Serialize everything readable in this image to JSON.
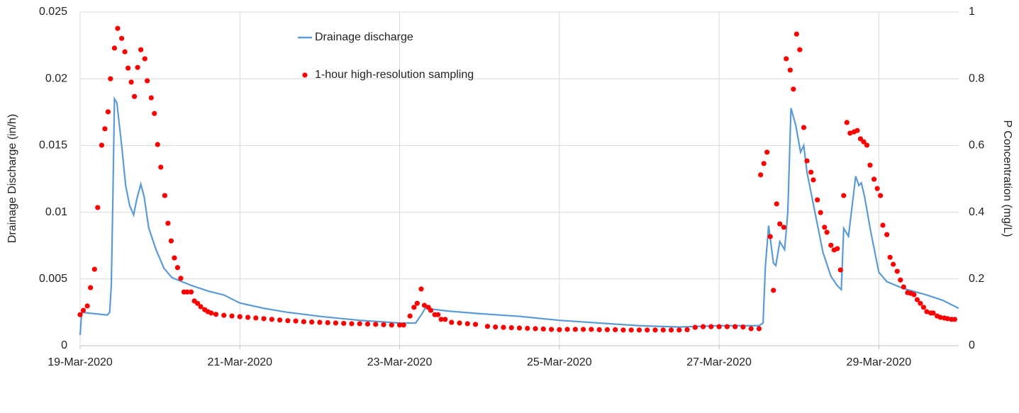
{
  "chart_data": {
    "type": "line-scatter",
    "y_label": "Drainage Discharge (in/h)",
    "y2_label": "P Concentration (mg/L)",
    "xlim": [
      0,
      11
    ],
    "xticks": [
      {
        "value": 0,
        "label": "19-Mar-2020"
      },
      {
        "value": 2,
        "label": "21-Mar-2020"
      },
      {
        "value": 4,
        "label": "23-Mar-2020"
      },
      {
        "value": 6,
        "label": "25-Mar-2020"
      },
      {
        "value": 8,
        "label": "27-Mar-2020"
      },
      {
        "value": 10,
        "label": "29-Mar-2020"
      }
    ],
    "ylim": [
      0,
      0.025
    ],
    "yticks": [
      0,
      0.005,
      0.01,
      0.015,
      0.02,
      0.025
    ],
    "y2lim": [
      0,
      1
    ],
    "y2ticks": [
      0,
      0.2,
      0.4,
      0.6,
      0.8,
      1
    ],
    "grid": true,
    "legend": "top-center",
    "series": [
      {
        "name": "Drainage discharge",
        "kind": "line",
        "color": "#5b9bd5",
        "x": [
          0,
          0.02,
          0.34,
          0.37,
          0.39,
          0.41,
          0.43,
          0.46,
          0.52,
          0.57,
          0.62,
          0.67,
          0.71,
          0.76,
          0.8,
          0.86,
          0.95,
          1.05,
          1.15,
          1.4,
          1.6,
          1.8,
          2.0,
          2.3,
          2.6,
          3.0,
          3.5,
          4.0,
          4.2,
          4.27,
          4.32,
          4.6,
          5.0,
          5.5,
          6.0,
          6.5,
          7.0,
          7.5,
          8.0,
          8.5,
          8.55,
          8.58,
          8.62,
          8.68,
          8.71,
          8.76,
          8.82,
          8.86,
          8.9,
          8.96,
          9.02,
          9.06,
          9.1,
          9.2,
          9.3,
          9.4,
          9.48,
          9.53,
          9.56,
          9.62,
          9.68,
          9.71,
          9.75,
          9.78,
          9.82,
          9.9,
          10.0,
          10.1,
          10.3,
          10.6,
          10.8,
          11.0
        ],
        "values": [
          0.0008,
          0.0025,
          0.0023,
          0.0025,
          0.0045,
          0.011,
          0.0185,
          0.0182,
          0.015,
          0.012,
          0.0105,
          0.0098,
          0.011,
          0.0121,
          0.0112,
          0.0088,
          0.0072,
          0.0058,
          0.0051,
          0.0045,
          0.0041,
          0.0038,
          0.0032,
          0.0028,
          0.0025,
          0.0022,
          0.0019,
          0.0017,
          0.0017,
          0.0023,
          0.0028,
          0.0026,
          0.0024,
          0.0022,
          0.0019,
          0.0017,
          0.0015,
          0.0014,
          0.0015,
          0.0015,
          0.0017,
          0.006,
          0.009,
          0.0062,
          0.006,
          0.0078,
          0.0072,
          0.01,
          0.0178,
          0.0165,
          0.0145,
          0.015,
          0.013,
          0.01,
          0.007,
          0.0052,
          0.0045,
          0.0042,
          0.0088,
          0.0082,
          0.0112,
          0.0127,
          0.012,
          0.0122,
          0.0112,
          0.0085,
          0.0055,
          0.0048,
          0.0043,
          0.0038,
          0.0034,
          0.0028
        ]
      },
      {
        "name": "1-hour high-resolution sampling",
        "kind": "scatter",
        "axis": "y2",
        "color": "#ff0000",
        "x": [
          0,
          0.04,
          0.09,
          0.13,
          0.18,
          0.22,
          0.27,
          0.31,
          0.35,
          0.38,
          0.43,
          0.47,
          0.52,
          0.56,
          0.6,
          0.64,
          0.68,
          0.72,
          0.76,
          0.81,
          0.84,
          0.89,
          0.93,
          0.97,
          1.01,
          1.06,
          1.1,
          1.14,
          1.18,
          1.22,
          1.26,
          1.3,
          1.34,
          1.39,
          1.43,
          1.47,
          1.51,
          1.56,
          1.6,
          1.64,
          1.7,
          1.8,
          1.9,
          2.0,
          2.1,
          2.2,
          2.3,
          2.4,
          2.5,
          2.6,
          2.7,
          2.8,
          2.9,
          3.0,
          3.1,
          3.2,
          3.3,
          3.4,
          3.5,
          3.6,
          3.7,
          3.8,
          3.9,
          4.0,
          4.05,
          4.13,
          4.18,
          4.22,
          4.27,
          4.31,
          4.36,
          4.39,
          4.44,
          4.48,
          4.52,
          4.57,
          4.65,
          4.75,
          4.85,
          4.95,
          5.1,
          5.2,
          5.3,
          5.4,
          5.5,
          5.6,
          5.7,
          5.8,
          5.9,
          6.0,
          6.1,
          6.2,
          6.3,
          6.4,
          6.5,
          6.6,
          6.7,
          6.8,
          6.9,
          7.0,
          7.1,
          7.2,
          7.3,
          7.4,
          7.5,
          7.6,
          7.7,
          7.8,
          7.9,
          8.0,
          8.1,
          8.2,
          8.3,
          8.4,
          8.5,
          8.52,
          8.56,
          8.6,
          8.64,
          8.68,
          8.72,
          8.76,
          8.81,
          8.84,
          8.89,
          8.93,
          8.97,
          9.01,
          9.06,
          9.1,
          9.15,
          9.18,
          9.23,
          9.27,
          9.32,
          9.35,
          9.4,
          9.44,
          9.48,
          9.52,
          9.56,
          9.6,
          9.64,
          9.69,
          9.73,
          9.77,
          9.81,
          9.85,
          9.89,
          9.94,
          9.98,
          10.02,
          10.05,
          10.1,
          10.14,
          10.18,
          10.23,
          10.27,
          10.31,
          10.36,
          10.4,
          10.44,
          10.48,
          10.52,
          10.56,
          10.6,
          10.65,
          10.68,
          10.73,
          10.77,
          10.82,
          10.86,
          10.91,
          10.95
        ],
        "values": [
          0.093,
          0.106,
          0.119,
          0.174,
          0.229,
          0.414,
          0.601,
          0.65,
          0.701,
          0.8,
          0.892,
          0.951,
          0.921,
          0.881,
          0.832,
          0.79,
          0.747,
          0.834,
          0.887,
          0.86,
          0.794,
          0.743,
          0.696,
          0.603,
          0.535,
          0.45,
          0.367,
          0.314,
          0.263,
          0.234,
          0.202,
          0.161,
          0.161,
          0.161,
          0.134,
          0.127,
          0.117,
          0.108,
          0.102,
          0.098,
          0.094,
          0.091,
          0.089,
          0.087,
          0.085,
          0.083,
          0.081,
          0.079,
          0.077,
          0.075,
          0.074,
          0.072,
          0.071,
          0.07,
          0.069,
          0.068,
          0.067,
          0.066,
          0.066,
          0.065,
          0.064,
          0.063,
          0.062,
          0.062,
          0.062,
          0.089,
          0.115,
          0.127,
          0.17,
          0.121,
          0.115,
          0.106,
          0.093,
          0.093,
          0.079,
          0.079,
          0.07,
          0.068,
          0.066,
          0.064,
          0.058,
          0.056,
          0.055,
          0.054,
          0.053,
          0.052,
          0.051,
          0.05,
          0.049,
          0.048,
          0.049,
          0.049,
          0.049,
          0.049,
          0.048,
          0.048,
          0.048,
          0.047,
          0.047,
          0.047,
          0.047,
          0.047,
          0.047,
          0.047,
          0.047,
          0.048,
          0.055,
          0.057,
          0.057,
          0.057,
          0.057,
          0.057,
          0.056,
          0.051,
          0.051,
          0.512,
          0.546,
          0.58,
          0.327,
          0.166,
          0.425,
          0.365,
          0.355,
          0.86,
          0.826,
          0.769,
          0.934,
          0.887,
          0.654,
          0.554,
          0.52,
          0.497,
          0.437,
          0.399,
          0.355,
          0.34,
          0.301,
          0.287,
          0.291,
          0.227,
          0.45,
          0.669,
          0.637,
          0.641,
          0.645,
          0.62,
          0.611,
          0.601,
          0.541,
          0.499,
          0.471,
          0.45,
          0.361,
          0.333,
          0.265,
          0.244,
          0.223,
          0.197,
          0.176,
          0.159,
          0.157,
          0.153,
          0.138,
          0.127,
          0.115,
          0.102,
          0.098,
          0.098,
          0.089,
          0.085,
          0.083,
          0.081,
          0.079,
          0.079
        ]
      }
    ]
  }
}
